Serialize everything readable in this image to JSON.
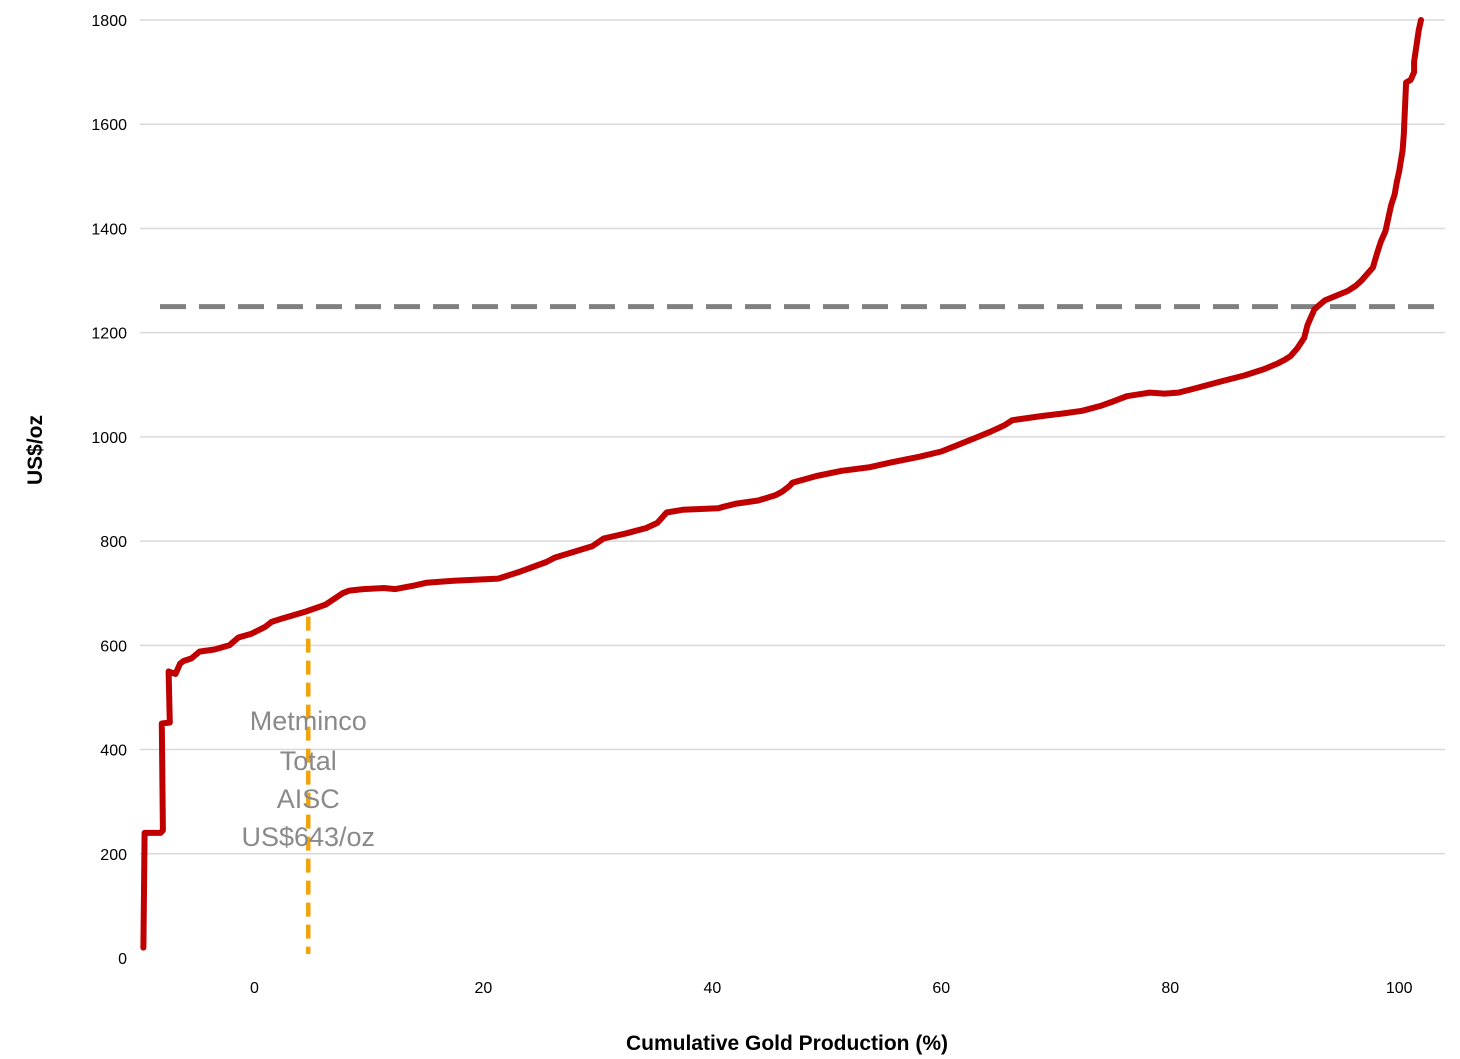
{
  "chart_data": {
    "type": "line",
    "title": "",
    "xlabel": "Cumulative Gold Production (%)",
    "ylabel": "US$/oz",
    "xlim": [
      -10,
      104
    ],
    "ylim": [
      0,
      1800
    ],
    "x_ticks": [
      0,
      20,
      40,
      60,
      80,
      100
    ],
    "y_ticks": [
      0,
      200,
      400,
      600,
      800,
      1000,
      1200,
      1400,
      1600,
      1800
    ],
    "grid": "horizontal",
    "legend": "none",
    "colors": {
      "curve": "#c00000",
      "reference_line": "#808080",
      "marker_line": "#f0a30a",
      "gridline": "#d9d9d9",
      "annotation": "#8a8a8a"
    },
    "series": [
      {
        "x": [
          -9.7,
          -9.6,
          -8.2,
          -8.0,
          -8.1,
          -7.4,
          -7.5,
          -6.9,
          -6.5,
          -6.2,
          -5.5,
          -4.8,
          -3.5,
          -2.2,
          -1.4,
          -0.3,
          0.9,
          1.5,
          2.5,
          4.5,
          6.2,
          7.7,
          8.3,
          9.5,
          11.3,
          12.3,
          14.0,
          15.0,
          17.4,
          21.3,
          23.0,
          25.5,
          26.2,
          29.5,
          30.5,
          32.5,
          34.2,
          35.2,
          36.0,
          37.4,
          40.5,
          41.0,
          42.1,
          44.0,
          45.5,
          46.1,
          46.7,
          47.0,
          49.1,
          51.3,
          53.8,
          55.4,
          58.1,
          60.0,
          61.5,
          63.2,
          64.3,
          65.5,
          66.2,
          68.8,
          70.7,
          72.3,
          74.0,
          75.0,
          76.2,
          78.2,
          79.5,
          80.7,
          82.0,
          84.7,
          86.5,
          88.2,
          89.3,
          90.0,
          90.5,
          91.1,
          91.7,
          92.0,
          92.6,
          93.5,
          95.5,
          96.2,
          96.7,
          97.7,
          98.1,
          98.4,
          98.8,
          99.1,
          99.3,
          99.6,
          99.8,
          100.0,
          100.3,
          100.4,
          100.6,
          101.0,
          101.3,
          101.3,
          101.7,
          101.9
        ],
        "y": [
          20,
          240,
          240,
          245,
          450,
          452,
          550,
          545,
          565,
          570,
          575,
          588,
          592,
          600,
          615,
          622,
          635,
          645,
          652,
          665,
          678,
          700,
          705,
          708,
          710,
          708,
          715,
          720,
          724,
          728,
          740,
          760,
          768,
          790,
          805,
          815,
          825,
          835,
          855,
          860,
          863,
          866,
          872,
          878,
          888,
          895,
          905,
          912,
          925,
          935,
          942,
          950,
          962,
          972,
          985,
          1000,
          1010,
          1022,
          1032,
          1040,
          1045,
          1050,
          1060,
          1068,
          1078,
          1085,
          1083,
          1085,
          1092,
          1108,
          1118,
          1130,
          1140,
          1148,
          1155,
          1170,
          1190,
          1215,
          1245,
          1262,
          1280,
          1290,
          1300,
          1325,
          1355,
          1375,
          1395,
          1425,
          1445,
          1465,
          1490,
          1510,
          1550,
          1580,
          1680,
          1685,
          1700,
          1720,
          1780,
          1800
        ]
      }
    ],
    "reference_line": {
      "y": 1250
    },
    "marker": {
      "x": 4.7,
      "y_top": 655
    },
    "annotation": {
      "lines": [
        "Metminco",
        "Total",
        "AISC",
        "US$643/oz"
      ]
    }
  }
}
